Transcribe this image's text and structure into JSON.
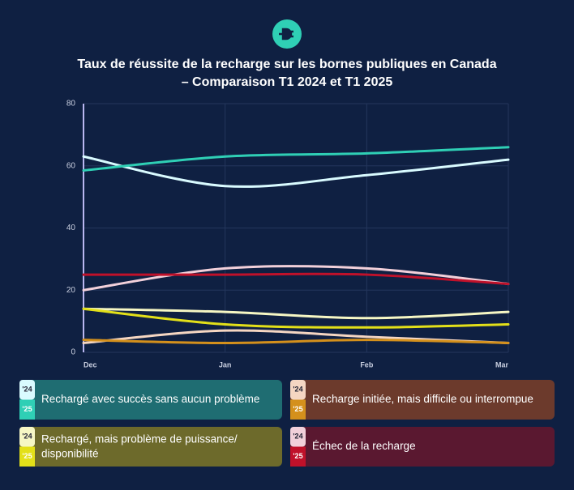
{
  "chart_data": {
    "type": "line",
    "title": [
      "Taux de réussite de la recharge sur les bornes publiques en Canada",
      "– Comparaison T1 2024 et T1 2025"
    ],
    "categories": [
      "Dec",
      "Jan",
      "Feb",
      "Mar"
    ],
    "ylim": [
      0,
      80
    ],
    "yticks": [
      0,
      20,
      40,
      60,
      80
    ],
    "grid": true,
    "groups": [
      {
        "label": "Rechargé avec succès sans aucun problème",
        "color": "#1f6d72",
        "series": [
          {
            "name": "'24",
            "color": "#d9fbff",
            "values": [
              63,
              53.5,
              57,
              62
            ]
          },
          {
            "name": "'25",
            "color": "#2fcfb5",
            "values": [
              58.5,
              63,
              64,
              66
            ]
          }
        ]
      },
      {
        "label": "Recharge initiée, mais difficile ou interrompue",
        "color": "#6c3a2c",
        "series": [
          {
            "name": "'24",
            "color": "#f5d6c2",
            "values": [
              3,
              7,
              5,
              3
            ]
          },
          {
            "name": "'25",
            "color": "#d4901c",
            "values": [
              4,
              3,
              4,
              3
            ]
          }
        ]
      },
      {
        "label": "Rechargé, mais problème de puissance/ disponibilité",
        "color": "#6d6a2b",
        "series": [
          {
            "name": "'24",
            "color": "#f6f7c4",
            "values": [
              14,
              13,
              11,
              13
            ]
          },
          {
            "name": "'25",
            "color": "#e3e019",
            "values": [
              14,
              9,
              8,
              9
            ]
          }
        ]
      },
      {
        "label": "Échec de la recharge",
        "color": "#5a1830",
        "series": [
          {
            "name": "'24",
            "color": "#f2d0da",
            "values": [
              20,
              27,
              27,
              22
            ]
          },
          {
            "name": "'25",
            "color": "#c0112a",
            "values": [
              25,
              25,
              25,
              22
            ]
          }
        ]
      }
    ]
  }
}
